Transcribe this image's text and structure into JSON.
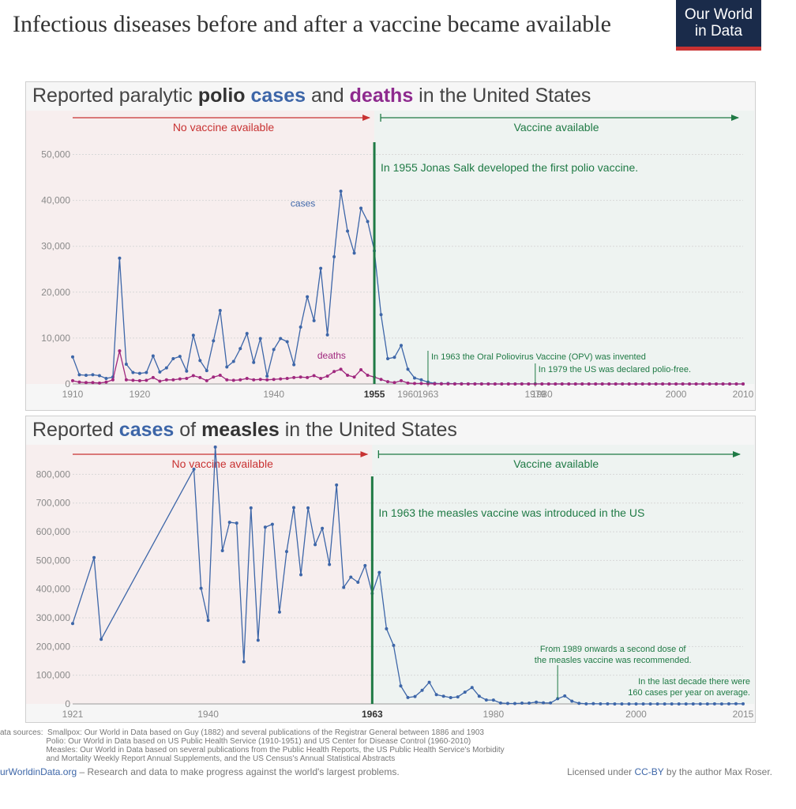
{
  "page": {
    "title": "Infectious diseases before and after a vaccine became available",
    "logo_line1": "Our World",
    "logo_line2": "in Data",
    "logo_colors": {
      "bg": "#1a2b4a",
      "bar": "#c83232"
    }
  },
  "polio": {
    "title_parts": [
      "Reported paralytic ",
      "polio",
      " ",
      "cases",
      " and ",
      "deaths",
      " in the United States"
    ],
    "no_vaccine_label": "No vaccine available",
    "vaccine_label": "Vaccine available",
    "vaccine_year_label": "1955",
    "vaccine_note": "In 1955 Jonas Salk developed the first polio vaccine.",
    "opv_note": "In 1963 the Oral Poliovirus Vaccine (OPV) was invented",
    "free_note": "In 1979 the US was declared polio-free.",
    "cases_label": "cases",
    "deaths_label": "deaths",
    "xticks": [
      1910,
      1920,
      1940,
      1960,
      1980,
      2000,
      2010
    ],
    "xticks_highlight": [
      1955,
      1963,
      1979
    ],
    "yticks": [
      0,
      10000,
      20000,
      30000,
      40000,
      50000
    ],
    "ytick_labels": [
      "0",
      "10,000",
      "20,000",
      "30,000",
      "40,000",
      "50,000"
    ]
  },
  "measles": {
    "title_parts": [
      "Reported ",
      "cases",
      " of ",
      "measles",
      " in the United States"
    ],
    "no_vaccine_label": "No vaccine available",
    "vaccine_label": "Vaccine available",
    "vaccine_year_label": "1963",
    "vaccine_note": "In 1963 the measles vaccine was introduced in the US",
    "second_dose_note_1": "From 1989 onwards a second dose of",
    "second_dose_note_2": "the measles vaccine was recommended.",
    "last_decade_note_1": "In the last decade there were",
    "last_decade_note_2": "160 cases per year on average.",
    "xticks": [
      1921,
      1940,
      1980,
      2000,
      2015
    ],
    "xticks_highlight": [
      1963
    ],
    "yticks": [
      0,
      100000,
      200000,
      300000,
      400000,
      500000,
      600000,
      700000,
      800000
    ],
    "ytick_labels": [
      "0",
      "100,000",
      "200,000",
      "300,000",
      "400,000",
      "500,000",
      "600,000",
      "700,000",
      "800,000"
    ]
  },
  "colors": {
    "cases": "#3d66a8",
    "deaths": "#a0287e",
    "no_vaccine": "#c83232",
    "vaccine": "#1f7a45",
    "grid": "#d8d8d8",
    "axis_text": "#8a8a8a"
  },
  "sources": {
    "line1": "ata sources:  Smallpox: Our World in Data based on Guy (1882) and several publications of the Registrar General between 1886 and 1903",
    "line2": "                     Polio: Our World in Data based on US Public Health Service (1910-1951) and US Center for Disease Control (1960-2010)",
    "line3": "                     Measles: Our World in Data based on several publications from the Public Health Reports, the US Public Health Service's Morbidity",
    "line4": "                     and Mortality Weekly Report Annual Supplements, and the US Census's Annual Statistical Abstracts"
  },
  "footer": {
    "left_link": "urWorldinData.org",
    "left_text": " – Research and data to make progress against the world's largest problems.",
    "right_prefix": "Licensed under ",
    "right_link": "CC-BY",
    "right_suffix": " by the author Max Roser."
  },
  "chart_data": [
    {
      "type": "line",
      "title": "Reported paralytic polio cases and deaths in the United States",
      "xlim": [
        1910,
        2010
      ],
      "ylim": [
        0,
        58000
      ],
      "grid": true,
      "series": [
        {
          "name": "cases",
          "x": [
            1910,
            1911,
            1912,
            1913,
            1914,
            1915,
            1916,
            1917,
            1918,
            1919,
            1920,
            1921,
            1922,
            1923,
            1924,
            1925,
            1926,
            1927,
            1928,
            1929,
            1930,
            1931,
            1932,
            1933,
            1934,
            1935,
            1936,
            1937,
            1938,
            1939,
            1940,
            1941,
            1942,
            1943,
            1944,
            1945,
            1946,
            1947,
            1948,
            1949,
            1950,
            1951,
            1952,
            1953,
            1954,
            1955,
            1956,
            1957,
            1958,
            1959,
            1960,
            1961,
            1962,
            1963,
            1964,
            1965,
            1966,
            1967,
            1968,
            1969,
            1970,
            1971,
            1972,
            1973,
            1974,
            1975,
            1976,
            1977,
            1978,
            1979,
            1980,
            1981,
            1982,
            1983,
            1984,
            1985,
            1986,
            1987,
            1988,
            1989,
            1990,
            1991,
            1992,
            1993,
            1994,
            1995,
            1996,
            1997,
            1998,
            1999,
            2000,
            2001,
            2002,
            2003,
            2004,
            2005,
            2006,
            2007,
            2008,
            2009,
            2010
          ],
          "values": [
            5900,
            2000,
            1900,
            2000,
            1800,
            1200,
            1500,
            27400,
            4300,
            2500,
            2300,
            2500,
            6100,
            2600,
            3500,
            5500,
            6000,
            2800,
            10600,
            5100,
            2900,
            9400,
            16000,
            3700,
            4900,
            7700,
            11000,
            4700,
            9900,
            1700,
            7500,
            9900,
            9200,
            4200,
            12400,
            19000,
            13800,
            25200,
            10700,
            27700,
            42000,
            33300,
            28500,
            38300,
            35400,
            29000,
            15100,
            5500,
            5800,
            8400,
            3200,
            1300,
            910,
            400,
            120,
            70,
            110,
            40,
            50,
            30,
            30,
            20,
            30,
            8,
            7,
            13,
            10,
            19,
            9,
            25,
            9,
            8,
            5,
            10,
            8,
            7,
            8,
            5,
            6,
            5,
            4,
            5,
            4,
            3,
            3,
            2,
            1,
            1,
            1,
            1,
            0,
            0,
            0,
            0,
            0,
            0,
            0,
            0,
            0,
            0,
            0
          ]
        },
        {
          "name": "deaths",
          "x": [
            1910,
            1911,
            1912,
            1913,
            1914,
            1915,
            1916,
            1917,
            1918,
            1919,
            1920,
            1921,
            1922,
            1923,
            1924,
            1925,
            1926,
            1927,
            1928,
            1929,
            1930,
            1931,
            1932,
            1933,
            1934,
            1935,
            1936,
            1937,
            1938,
            1939,
            1940,
            1941,
            1942,
            1943,
            1944,
            1945,
            1946,
            1947,
            1948,
            1949,
            1950,
            1951,
            1952,
            1953,
            1954,
            1955,
            1956,
            1957,
            1958,
            1959,
            1960,
            1961,
            1962,
            1963,
            1964,
            1965,
            1966,
            1967,
            1968,
            1969,
            1970,
            1971,
            1972,
            1973,
            1974,
            1975,
            1976,
            1977,
            1978,
            1979,
            1980,
            1981,
            1982,
            1983,
            1984,
            1985,
            1986,
            1987,
            1988,
            1989,
            1990,
            1991,
            1992,
            1993,
            1994,
            1995,
            1996,
            1997,
            1998,
            1999,
            2000,
            2001,
            2002,
            2003,
            2004,
            2005,
            2006,
            2007,
            2008,
            2009,
            2010
          ],
          "values": [
            700,
            400,
            300,
            300,
            200,
            400,
            900,
            7200,
            900,
            800,
            700,
            800,
            1400,
            600,
            900,
            900,
            1100,
            1200,
            1800,
            1400,
            700,
            1500,
            1900,
            900,
            800,
            900,
            1200,
            900,
            1000,
            900,
            1000,
            1100,
            1200,
            1400,
            1500,
            1400,
            1800,
            1200,
            1700,
            2700,
            3200,
            1900,
            1500,
            3100,
            1900,
            1500,
            1000,
            500,
            300,
            700,
            200,
            100,
            100,
            50,
            30,
            20,
            20,
            10,
            10,
            10,
            10,
            5,
            5,
            5,
            5,
            5,
            5,
            5,
            5,
            5,
            5,
            5,
            5,
            5,
            5,
            5,
            5,
            5,
            5,
            5,
            5,
            5,
            5,
            5,
            5,
            5,
            5,
            5,
            5,
            5,
            5,
            5,
            5,
            5,
            5,
            5,
            5,
            5,
            5,
            5,
            5
          ]
        }
      ],
      "annotations": [
        "No vaccine available",
        "Vaccine available",
        "In 1955 Jonas Salk developed the first polio vaccine.",
        "In 1963 the Oral Poliovirus Vaccine (OPV) was invented",
        "In 1979 the US was declared polio-free."
      ]
    },
    {
      "type": "line",
      "title": "Reported cases of measles in the United States",
      "xlim": [
        1921,
        2015
      ],
      "ylim": [
        0,
        870000
      ],
      "grid": true,
      "series": [
        {
          "name": "cases",
          "x": [
            1921,
            1924,
            1925,
            1938,
            1939,
            1940,
            1941,
            1942,
            1943,
            1944,
            1945,
            1946,
            1947,
            1948,
            1949,
            1950,
            1951,
            1952,
            1953,
            1954,
            1955,
            1956,
            1957,
            1958,
            1959,
            1960,
            1961,
            1962,
            1963,
            1964,
            1965,
            1966,
            1967,
            1968,
            1969,
            1970,
            1971,
            1972,
            1973,
            1974,
            1975,
            1976,
            1977,
            1978,
            1979,
            1980,
            1981,
            1982,
            1983,
            1984,
            1985,
            1986,
            1987,
            1988,
            1989,
            1990,
            1991,
            1992,
            1993,
            1994,
            1995,
            1996,
            1997,
            1998,
            1999,
            2000,
            2001,
            2002,
            2003,
            2004,
            2005,
            2006,
            2007,
            2008,
            2009,
            2010,
            2011,
            2012,
            2013,
            2014,
            2015
          ],
          "values": [
            280000,
            510000,
            225000,
            818000,
            403000,
            291000,
            895000,
            534000,
            633000,
            630000,
            147000,
            683000,
            222000,
            616000,
            626000,
            320000,
            531000,
            684000,
            450000,
            683000,
            555000,
            612000,
            486000,
            763000,
            406000,
            442000,
            424000,
            482000,
            385000,
            458000,
            262000,
            204000,
            62700,
            22200,
            25800,
            47400,
            75300,
            32300,
            26700,
            22100,
            24400,
            41100,
            57300,
            26900,
            13600,
            13500,
            3100,
            1700,
            1500,
            2600,
            2800,
            6300,
            3700,
            3400,
            18200,
            27800,
            9600,
            2200,
            300,
            960,
            310,
            510,
            140,
            100,
            100,
            86,
            116,
            44,
            56,
            37,
            66,
            55,
            43,
            140,
            71,
            63,
            220,
            55,
            187,
            667,
            188
          ]
        }
      ],
      "annotations": [
        "No vaccine available",
        "Vaccine available",
        "In 1963 the measles vaccine was introduced in the US",
        "From 1989 onwards a second dose of the measles vaccine was recommended.",
        "In the last decade there were 160 cases per year on average."
      ]
    }
  ]
}
